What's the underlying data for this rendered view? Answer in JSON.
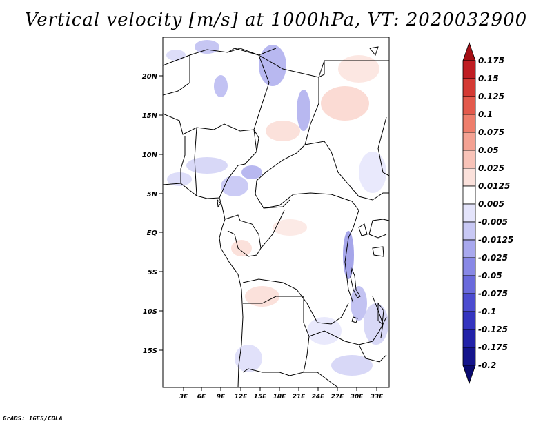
{
  "title": "Vertical velocity [m/s] at 1000hPa, VT: 2020032900",
  "footer": "GrADS: IGES/COLA",
  "lat_labels": [
    "20N",
    "15N",
    "10N",
    "5N",
    "EQ",
    "5S",
    "10S",
    "15S"
  ],
  "lon_labels": [
    "3E",
    "6E",
    "9E",
    "12E",
    "15E",
    "18E",
    "21E",
    "24E",
    "27E",
    "30E",
    "33E"
  ],
  "colorbar": {
    "labels": [
      "0.175",
      "0.15",
      "0.125",
      "0.1",
      "0.075",
      "0.05",
      "0.025",
      "0.0125",
      "0.005",
      "-0.005",
      "-0.0125",
      "-0.025",
      "-0.05",
      "-0.075",
      "-0.1",
      "-0.125",
      "-0.175",
      "-0.2"
    ],
    "colors": [
      "#a50f15",
      "#bf1d22",
      "#d43a34",
      "#e35a4c",
      "#ee7e6c",
      "#f4a293",
      "#f8c3b8",
      "#fbe1db",
      "#ffffff",
      "#e4e4fb",
      "#c8c8f4",
      "#a8a8ee",
      "#8888e6",
      "#6a6adc",
      "#4c4cd0",
      "#3434bf",
      "#2222a8",
      "#14148c",
      "#0a0a70"
    ]
  }
}
